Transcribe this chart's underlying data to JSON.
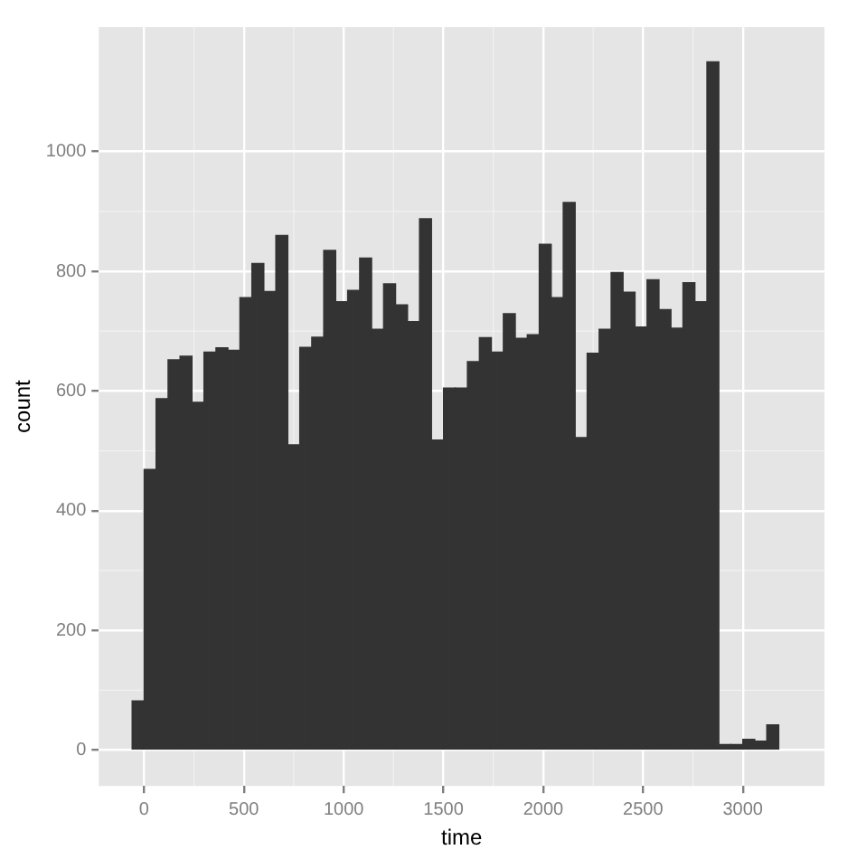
{
  "chart_data": {
    "type": "histogram",
    "xlabel": "time",
    "ylabel": "count",
    "color": "#333333",
    "bins": [
      -60,
      0,
      60,
      120,
      180,
      240,
      300,
      360,
      420,
      480,
      540,
      600,
      660,
      720,
      780,
      840,
      900,
      960,
      1020,
      1080,
      1140,
      1200,
      1260,
      1320,
      1380,
      1440,
      1500,
      1560,
      1620,
      1680,
      1740,
      1800,
      1860,
      1920,
      1980,
      2040,
      2100,
      2160,
      2220,
      2280,
      2340,
      2400,
      2460,
      2520,
      2580,
      2640,
      2700,
      2760,
      2820,
      2880,
      2940,
      3000,
      3060,
      3120,
      3180
    ],
    "values": [
      82,
      469,
      587,
      652,
      658,
      581,
      665,
      672,
      668,
      756,
      813,
      766,
      860,
      510,
      673,
      690,
      835,
      749,
      768,
      822,
      703,
      779,
      744,
      716,
      888,
      518,
      605,
      605,
      649,
      689,
      665,
      729,
      688,
      694,
      845,
      756,
      915,
      522,
      663,
      703,
      798,
      765,
      707,
      786,
      736,
      705,
      781,
      749,
      1150,
      9,
      9,
      18,
      15,
      42
    ],
    "xlim": [
      -227,
      3409
    ],
    "xticks": [
      0,
      500,
      1000,
      1500,
      2000,
      2500,
      3000
    ],
    "ylim": [
      -60,
      1208
    ],
    "yticks": [
      0,
      200,
      400,
      600,
      800,
      1000
    ],
    "grid": true
  }
}
